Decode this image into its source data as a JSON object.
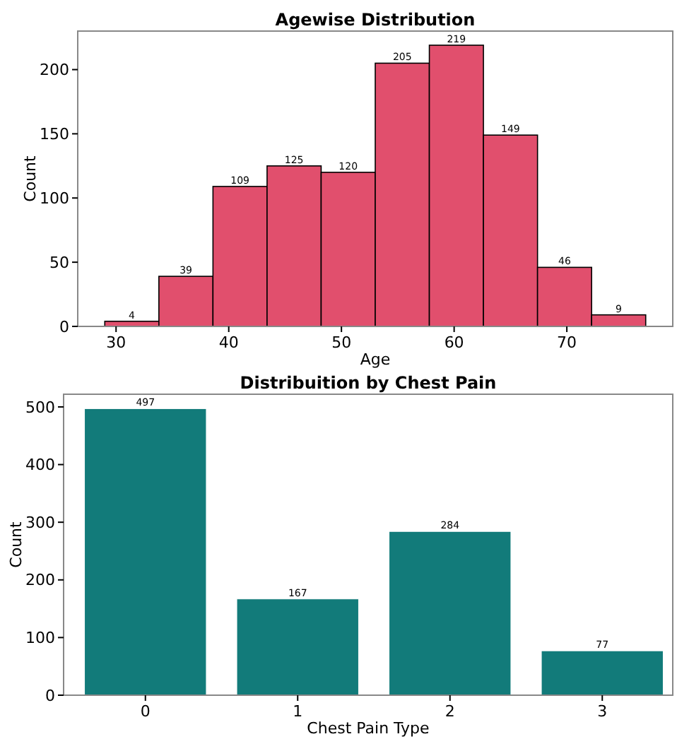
{
  "chart_data": [
    {
      "type": "histogram",
      "title": "Agewise Distribution",
      "xlabel": "Age",
      "ylabel": "Count",
      "bins": [
        29,
        33.8,
        38.6,
        43.4,
        48.2,
        53,
        57.8,
        62.6,
        67.4,
        72.2,
        77
      ],
      "values": [
        4,
        39,
        109,
        125,
        120,
        205,
        219,
        149,
        46,
        9
      ],
      "color": "#e14f6d",
      "xlim": [
        26.6,
        79.4
      ],
      "xticks": [
        30,
        40,
        50,
        60,
        70
      ],
      "ylim": [
        0,
        230
      ],
      "yticks": [
        0,
        50,
        100,
        150,
        200
      ],
      "data_labels": true
    },
    {
      "type": "bar",
      "title": "Distribuition by Chest Pain",
      "xlabel": "Chest Pain Type",
      "ylabel": "Count",
      "categories": [
        "0",
        "1",
        "2",
        "3"
      ],
      "values": [
        497,
        167,
        284,
        77
      ],
      "color": "#127b7a",
      "ylim": [
        0,
        522
      ],
      "yticks": [
        0,
        100,
        200,
        300,
        400,
        500
      ],
      "data_labels": true
    }
  ]
}
